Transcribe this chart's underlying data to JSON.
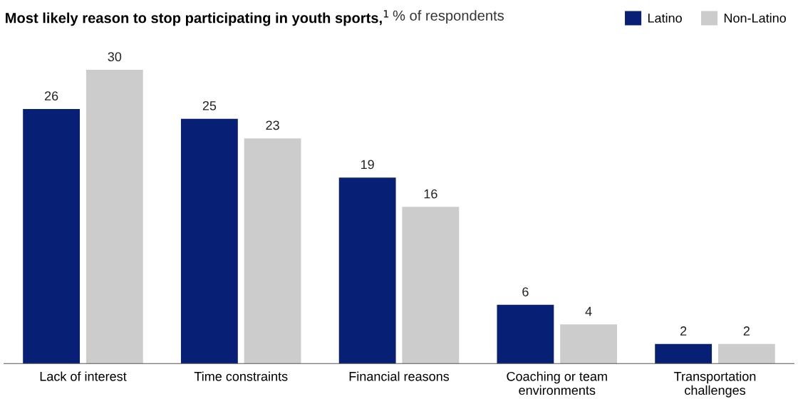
{
  "chart_data": {
    "type": "bar",
    "title": "Most likely reason to stop participating in youth sports,$^{1}$",
    "subtitle": "% of respondents",
    "categories": [
      "Lack of interest",
      "Time constraints",
      "Financial reasons",
      "Coaching or team\nenvironments",
      "Transportation\nchallenges"
    ],
    "series": [
      {
        "name": "Latino",
        "color": "#081f76",
        "values": [
          26,
          25,
          19,
          6,
          2
        ]
      },
      {
        "name": "Non-Latino",
        "color": "#cccccc",
        "values": [
          30,
          23,
          16,
          4,
          2
        ]
      }
    ],
    "data_labels": true,
    "tick_labels": "x",
    "legend": "top right",
    "grid": false
  }
}
